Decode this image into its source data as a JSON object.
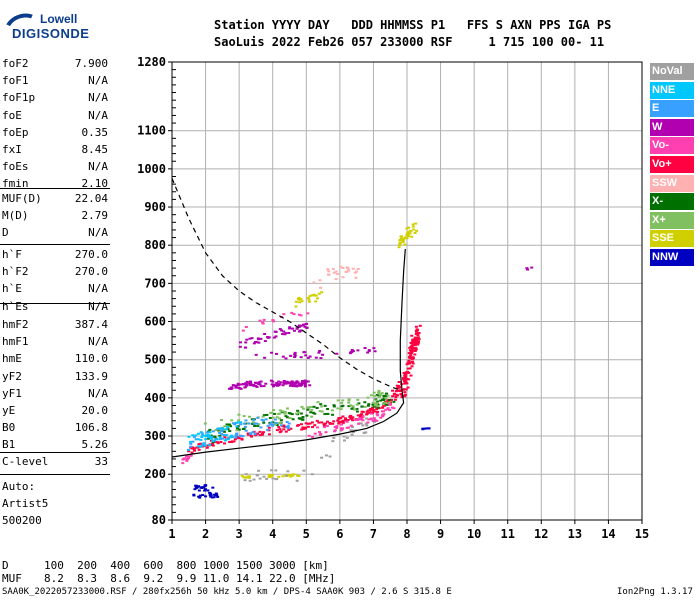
{
  "logo": {
    "line1": "Lowell",
    "line2": "DIGISONDE"
  },
  "header": {
    "line1": "Station YYYY DAY   DDD HHMMSS P1   FFS S AXN PPS IGA PS",
    "line2": "SaoLuis 2022 Feb26 057 233000 RSF     1 715 100 00- 11"
  },
  "params_a": [
    {
      "k": "foF2",
      "v": "7.900"
    },
    {
      "k": "foF1",
      "v": "N/A"
    },
    {
      "k": "foF1p",
      "v": "N/A"
    },
    {
      "k": "foE",
      "v": "N/A"
    },
    {
      "k": "foEp",
      "v": "0.35"
    },
    {
      "k": "fxI",
      "v": "8.45"
    },
    {
      "k": "foEs",
      "v": "N/A"
    },
    {
      "k": "fmin",
      "v": "2.10"
    }
  ],
  "params_b": [
    {
      "k": "MUF(D)",
      "v": "22.04"
    },
    {
      "k": "M(D)",
      "v": "2.79"
    },
    {
      "k": "D",
      "v": "N/A"
    }
  ],
  "params_c": [
    {
      "k": "h`F",
      "v": "270.0"
    },
    {
      "k": "h`F2",
      "v": "270.0"
    },
    {
      "k": "h`E",
      "v": "N/A"
    },
    {
      "k": "h`Es",
      "v": "N/A"
    }
  ],
  "params_d": [
    {
      "k": "hmF2",
      "v": "387.4"
    },
    {
      "k": "hmF1",
      "v": "N/A"
    },
    {
      "k": "hmE",
      "v": "110.0"
    },
    {
      "k": "yF2",
      "v": "133.9"
    },
    {
      "k": "yF1",
      "v": "N/A"
    },
    {
      "k": "yE",
      "v": "20.0"
    },
    {
      "k": "B0",
      "v": "106.8"
    },
    {
      "k": "B1",
      "v": "5.26"
    }
  ],
  "params_e": [
    {
      "k": "C-level",
      "v": "33"
    }
  ],
  "auto": {
    "l1": "Auto:",
    "l2": "Artist5",
    "l3": "500200"
  },
  "legend": [
    {
      "label": "NoVal",
      "color": "#a0a0a0"
    },
    {
      "label": "NNE",
      "color": "#00c8ff"
    },
    {
      "label": "E",
      "color": "#38a0ff"
    },
    {
      "label": "W",
      "color": "#b000b0"
    },
    {
      "label": "Vo-",
      "color": "#ff40b0"
    },
    {
      "label": "Vo+",
      "color": "#ff0040"
    },
    {
      "label": "SSW",
      "color": "#ffb0b0"
    },
    {
      "label": "X-",
      "color": "#007000"
    },
    {
      "label": "X+",
      "color": "#80c060"
    },
    {
      "label": "SSE",
      "color": "#d0d000"
    },
    {
      "label": "NNW",
      "color": "#0000c0"
    }
  ],
  "muf_table": {
    "d_label": "D",
    "d_values": "100  200  400  600  800 1000 1500 3000 [km]",
    "muf_label": "MUF",
    "muf_values": "8.2  8.3  8.6  9.2  9.9 11.0 14.1 22.0 [MHz]"
  },
  "footer": {
    "left": "SAA0K_2022057233000.RSF / 280fx256h 50 kHz 5.0 km / DPS-4 SAA0K 903 / 2.6 S 315.8 E",
    "right": "Ion2Png 1.3.17"
  },
  "chart_data": {
    "type": "scatter",
    "xlabel": "",
    "ylabel": "",
    "xlim": [
      1,
      15
    ],
    "ylim": [
      80,
      1280
    ],
    "xticks": [
      1,
      2,
      3,
      4,
      5,
      6,
      7,
      8,
      9,
      10,
      11,
      12,
      13,
      14,
      15
    ],
    "yticks": [
      80,
      200,
      300,
      400,
      500,
      600,
      700,
      800,
      900,
      1000,
      1100,
      1280
    ],
    "yticks_minor": [
      100,
      120,
      140,
      160,
      180,
      220,
      240,
      260,
      280,
      320,
      340,
      360,
      380,
      420,
      440,
      460,
      480,
      520,
      540,
      560,
      580,
      620,
      640,
      660,
      680,
      720,
      740,
      760,
      780,
      820,
      840,
      860,
      880,
      920,
      940,
      960,
      980,
      1020,
      1040,
      1060,
      1080,
      1120,
      1140,
      1160,
      1180,
      1200,
      1220,
      1240,
      1260
    ],
    "grid": true,
    "lines": [
      {
        "name": "profile",
        "style": "solid",
        "points": [
          [
            1,
            245
          ],
          [
            2,
            258
          ],
          [
            3,
            268
          ],
          [
            4,
            278
          ],
          [
            5,
            290
          ],
          [
            6,
            305
          ],
          [
            6.8,
            320
          ],
          [
            7.3,
            338
          ],
          [
            7.7,
            360
          ],
          [
            7.9,
            387
          ],
          [
            7.85,
            420
          ],
          [
            7.8,
            470
          ],
          [
            7.8,
            550
          ],
          [
            7.85,
            650
          ],
          [
            7.9,
            730
          ],
          [
            7.95,
            790
          ]
        ]
      },
      {
        "name": "x-trace",
        "style": "dashed",
        "points": [
          [
            1,
            975
          ],
          [
            1.5,
            870
          ],
          [
            2,
            780
          ],
          [
            2.5,
            720
          ],
          [
            3,
            680
          ],
          [
            3.5,
            650
          ],
          [
            4,
            625
          ],
          [
            4.5,
            600
          ],
          [
            5,
            570
          ],
          [
            5.5,
            540
          ],
          [
            6,
            505
          ],
          [
            6.5,
            475
          ],
          [
            7,
            450
          ],
          [
            7.5,
            430
          ],
          [
            7.8,
            420
          ]
        ]
      }
    ],
    "clusters": [
      {
        "kind": "Vo+",
        "color": "#ff0040",
        "trace": [
          [
            1.5,
            265
          ],
          [
            2,
            280
          ],
          [
            3,
            300
          ],
          [
            4,
            318
          ],
          [
            5,
            330
          ],
          [
            6,
            345
          ],
          [
            6.5,
            355
          ],
          [
            7,
            370
          ],
          [
            7.5,
            400
          ],
          [
            7.8,
            440
          ],
          [
            8,
            480
          ],
          [
            8.2,
            540
          ],
          [
            8.3,
            600
          ]
        ],
        "spread": 8,
        "n": 260
      },
      {
        "kind": "X-",
        "color": "#007000",
        "trace": [
          [
            2,
            300
          ],
          [
            3,
            330
          ],
          [
            4,
            345
          ],
          [
            5,
            360
          ],
          [
            6,
            380
          ],
          [
            7,
            390
          ],
          [
            7.5,
            400
          ]
        ],
        "spread": 18,
        "n": 110
      },
      {
        "kind": "X+",
        "color": "#80c060",
        "trace": [
          [
            2,
            320
          ],
          [
            3,
            340
          ],
          [
            4,
            350
          ],
          [
            5,
            370
          ],
          [
            6,
            385
          ],
          [
            7,
            400
          ],
          [
            7.5,
            410
          ]
        ],
        "spread": 20,
        "n": 90
      },
      {
        "kind": "E",
        "color": "#38a0ff",
        "trace": [
          [
            1.5,
            280
          ],
          [
            2.5,
            310
          ],
          [
            3.5,
            330
          ],
          [
            4.5,
            340
          ]
        ],
        "spread": 20,
        "n": 70
      },
      {
        "kind": "NNE",
        "color": "#00c8ff",
        "trace": [
          [
            1.5,
            280
          ],
          [
            2,
            300
          ],
          [
            3,
            320
          ]
        ],
        "spread": 22,
        "n": 40
      },
      {
        "kind": "NNW",
        "color": "#0000c0",
        "trace": [
          [
            1.6,
            145
          ],
          [
            2.3,
            145
          ],
          [
            1.6,
            170
          ],
          [
            2.3,
            170
          ]
        ],
        "spread": 4,
        "n": 40
      },
      {
        "kind": "W",
        "color": "#b000b0",
        "trace": [
          [
            2.7,
            430
          ],
          [
            3.5,
            440
          ],
          [
            4.5,
            440
          ],
          [
            5,
            440
          ]
        ],
        "spread": 8,
        "n": 110
      },
      {
        "kind": "W",
        "color": "#b000b0",
        "trace": [
          [
            3,
            540
          ],
          [
            3.5,
            555
          ],
          [
            4.5,
            580
          ],
          [
            5,
            590
          ]
        ],
        "spread": 10,
        "n": 50
      },
      {
        "kind": "W",
        "color": "#b000b0",
        "trace": [
          [
            3.5,
            510
          ],
          [
            5,
            515
          ],
          [
            6,
            520
          ],
          [
            7,
            530
          ]
        ],
        "spread": 10,
        "n": 35
      },
      {
        "kind": "SSE",
        "color": "#d0d000",
        "trace": [
          [
            7.7,
            800
          ],
          [
            7.9,
            830
          ],
          [
            8.2,
            850
          ]
        ],
        "spread": 14,
        "n": 35
      },
      {
        "kind": "SSE",
        "color": "#d0d000",
        "trace": [
          [
            4.5,
            650
          ],
          [
            5,
            660
          ],
          [
            5.5,
            670
          ]
        ],
        "spread": 12,
        "n": 20
      },
      {
        "kind": "SSE",
        "color": "#d0d000",
        "trace": [
          [
            3,
            195
          ],
          [
            4,
            198
          ],
          [
            5,
            200
          ]
        ],
        "spread": 3,
        "n": 25
      },
      {
        "kind": "NoVal",
        "color": "#a0a0a0",
        "trace": [
          [
            3,
            200
          ],
          [
            4,
            200
          ],
          [
            5,
            200
          ],
          [
            6,
            300
          ],
          [
            6.5,
            320
          ],
          [
            7,
            340
          ]
        ],
        "spread": 15,
        "n": 45
      },
      {
        "kind": "SSW",
        "color": "#ffb0b0",
        "trace": [
          [
            5.5,
            720
          ],
          [
            6,
            730
          ],
          [
            6.5,
            720
          ],
          [
            5,
            700
          ]
        ],
        "spread": 20,
        "n": 25
      },
      {
        "kind": "Vo-",
        "color": "#ff40b0",
        "trace": [
          [
            5,
            310
          ],
          [
            6,
            330
          ],
          [
            7,
            350
          ],
          [
            7.5,
            380
          ]
        ],
        "spread": 12,
        "n": 60
      },
      {
        "kind": "Vo-",
        "color": "#ff40b0",
        "trace": [
          [
            1.2,
            230
          ],
          [
            1.5,
            250
          ]
        ],
        "spread": 6,
        "n": 12
      },
      {
        "kind": "Vo-",
        "color": "#ff40b0",
        "trace": [
          [
            3,
            580
          ],
          [
            4,
            610
          ],
          [
            5,
            625
          ]
        ],
        "spread": 8,
        "n": 15
      },
      {
        "kind": "Vo+",
        "color": "#ff0040",
        "trace": [
          [
            7.8,
            400
          ],
          [
            8,
            460
          ],
          [
            8.1,
            520
          ],
          [
            8.2,
            580
          ]
        ],
        "spread": 10,
        "n": 60
      },
      {
        "kind": "NNW",
        "color": "#0000c0",
        "trace": [
          [
            8.4,
            320
          ],
          [
            8.6,
            322
          ]
        ],
        "spread": 2,
        "n": 6
      },
      {
        "kind": "W",
        "color": "#b000b0",
        "trace": [
          [
            11.6,
            738
          ]
        ],
        "spread": 6,
        "n": 3
      }
    ]
  }
}
